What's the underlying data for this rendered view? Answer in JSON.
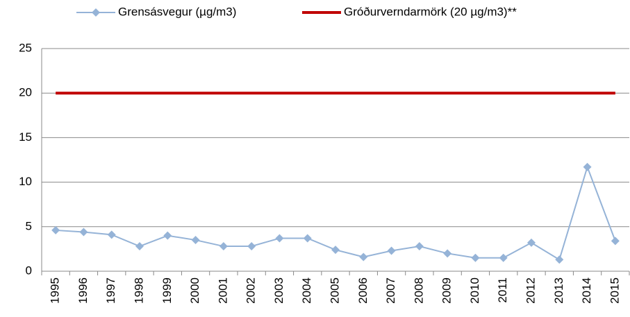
{
  "chart_data": {
    "type": "line",
    "categories": [
      "1995",
      "1996",
      "1997",
      "1998",
      "1999",
      "2000",
      "2001",
      "2002",
      "2003",
      "2004",
      "2005",
      "2006",
      "2007",
      "2008",
      "2009",
      "2010",
      "2011",
      "2012",
      "2013",
      "2014",
      "2015"
    ],
    "series": [
      {
        "name": "Grensásvegur (µg/m3)",
        "color": "#95b3d7",
        "marker": "diamond",
        "values": [
          4.6,
          4.4,
          4.1,
          2.8,
          4.0,
          3.5,
          2.8,
          2.8,
          3.7,
          3.7,
          2.4,
          1.6,
          2.3,
          2.8,
          2.0,
          1.5,
          1.5,
          3.2,
          1.3,
          11.7,
          3.4
        ]
      },
      {
        "name": "Gróðurverndarmörk (20 µg/m3)**",
        "color": "#c00000",
        "marker": null,
        "values": [
          20,
          20,
          20,
          20,
          20,
          20,
          20,
          20,
          20,
          20,
          20,
          20,
          20,
          20,
          20,
          20,
          20,
          20,
          20,
          20,
          20
        ]
      }
    ],
    "ylim": [
      0,
      25
    ],
    "yticks": [
      0,
      5,
      10,
      15,
      20,
      25
    ],
    "grid": true,
    "legend": "top"
  }
}
